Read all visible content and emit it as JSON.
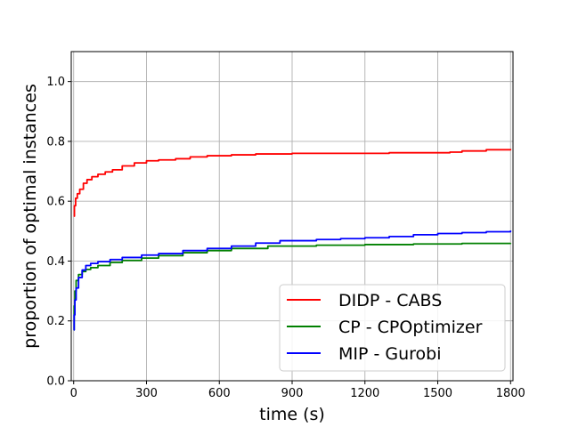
{
  "chart_data": {
    "type": "line",
    "title": "",
    "xlabel": "time (s)",
    "ylabel": "proportion of optimal instances",
    "xlim": [
      -10,
      1810
    ],
    "ylim": [
      0.0,
      1.1
    ],
    "xticks": [
      0,
      300,
      600,
      900,
      1200,
      1500,
      1800
    ],
    "yticks": [
      0.0,
      0.2,
      0.4,
      0.6,
      0.8,
      1.0
    ],
    "xtick_labels": [
      "0",
      "300",
      "600",
      "900",
      "1200",
      "1500",
      "1800"
    ],
    "ytick_labels": [
      "0.0",
      "0.2",
      "0.4",
      "0.6",
      "0.8",
      "1.0"
    ],
    "grid": true,
    "legend_position": "lower-right",
    "series": [
      {
        "name": "DIDP - CABS",
        "color": "#ff0000",
        "x": [
          0,
          3,
          8,
          15,
          25,
          40,
          55,
          75,
          100,
          130,
          160,
          200,
          250,
          300,
          350,
          420,
          480,
          550,
          650,
          750,
          900,
          1100,
          1300,
          1450,
          1550,
          1600,
          1700,
          1800
        ],
        "y": [
          0.55,
          0.585,
          0.61,
          0.625,
          0.64,
          0.66,
          0.672,
          0.682,
          0.69,
          0.698,
          0.705,
          0.718,
          0.728,
          0.735,
          0.738,
          0.742,
          0.748,
          0.752,
          0.755,
          0.758,
          0.76,
          0.76,
          0.762,
          0.762,
          0.764,
          0.768,
          0.772,
          0.775
        ]
      },
      {
        "name": "CP - CPOptimizer",
        "color": "#008000",
        "x": [
          0,
          2,
          5,
          10,
          20,
          35,
          50,
          70,
          100,
          150,
          200,
          280,
          350,
          450,
          550,
          650,
          800,
          1000,
          1200,
          1400,
          1600,
          1800
        ],
        "y": [
          0.17,
          0.25,
          0.3,
          0.335,
          0.355,
          0.365,
          0.372,
          0.378,
          0.385,
          0.395,
          0.402,
          0.41,
          0.418,
          0.428,
          0.435,
          0.442,
          0.45,
          0.453,
          0.455,
          0.457,
          0.459,
          0.46
        ]
      },
      {
        "name": "MIP - Gurobi",
        "color": "#0000ff",
        "x": [
          0,
          2,
          5,
          10,
          20,
          35,
          50,
          70,
          100,
          150,
          200,
          280,
          350,
          450,
          550,
          650,
          750,
          850,
          1000,
          1100,
          1200,
          1300,
          1400,
          1500,
          1600,
          1700,
          1800
        ],
        "y": [
          0.17,
          0.22,
          0.27,
          0.31,
          0.345,
          0.37,
          0.385,
          0.392,
          0.398,
          0.405,
          0.412,
          0.42,
          0.425,
          0.435,
          0.442,
          0.45,
          0.46,
          0.468,
          0.472,
          0.475,
          0.478,
          0.482,
          0.488,
          0.492,
          0.495,
          0.498,
          0.502
        ]
      }
    ]
  }
}
